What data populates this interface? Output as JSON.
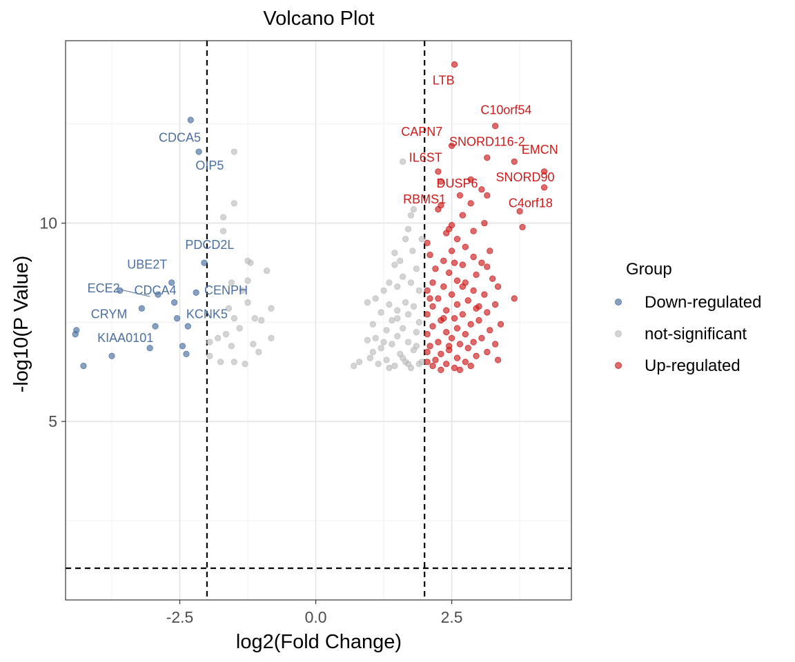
{
  "chart_data": {
    "type": "scatter",
    "title": "Volcano Plot",
    "xlabel": "log2(Fold Change)",
    "ylabel": "-log10(P Value)",
    "xlim": [
      -4.6,
      4.7
    ],
    "ylim": [
      0.5,
      14.6
    ],
    "x_ticks": [
      -2.5,
      0.0,
      2.5
    ],
    "x_tick_labels": [
      "-2.5",
      "0.0",
      "2.5"
    ],
    "y_ticks": [
      5,
      10
    ],
    "y_tick_labels": [
      "5",
      "10"
    ],
    "grid": true,
    "thresholds": {
      "fold_change": [
        -2,
        2
      ],
      "neg_log10_p": 1.3
    },
    "legend": {
      "title": "Group",
      "position": "right",
      "entries": [
        "Down-regulated",
        "not-significant",
        "Up-regulated"
      ]
    },
    "colors": {
      "Down-regulated": "#4a6fa0",
      "not-significant": "#bdbdbd",
      "Up-regulated": "#cc1b1b"
    },
    "series": [
      {
        "name": "Down-regulated",
        "points": [
          [
            -2.3,
            12.6
          ],
          [
            -2.15,
            11.8
          ],
          [
            -2.05,
            9.0
          ],
          [
            -2.65,
            8.5
          ],
          [
            -2.6,
            8.0
          ],
          [
            -2.2,
            8.25
          ],
          [
            -3.2,
            7.85
          ],
          [
            -2.55,
            7.6
          ],
          [
            -2.95,
            7.4
          ],
          [
            -2.35,
            7.4
          ],
          [
            -4.4,
            7.3
          ],
          [
            -4.42,
            7.2
          ],
          [
            -3.05,
            6.85
          ],
          [
            -2.45,
            6.9
          ],
          [
            -2.38,
            6.7
          ],
          [
            -3.75,
            6.65
          ],
          [
            -4.27,
            6.4
          ],
          [
            -3.6,
            8.3
          ],
          [
            -2.9,
            8.2
          ]
        ]
      },
      {
        "name": "not-significant",
        "points": [
          [
            -1.5,
            11.8
          ],
          [
            -1.5,
            10.5
          ],
          [
            -1.7,
            10.15
          ],
          [
            -1.7,
            9.8
          ],
          [
            -1.25,
            9.05
          ],
          [
            -1.2,
            9.0
          ],
          [
            -0.9,
            8.8
          ],
          [
            -1.55,
            8.5
          ],
          [
            -1.25,
            8.55
          ],
          [
            -1.35,
            8.3
          ],
          [
            -1.25,
            8.0
          ],
          [
            -0.82,
            7.85
          ],
          [
            -1.6,
            7.85
          ],
          [
            -1.5,
            7.6
          ],
          [
            -1.12,
            7.6
          ],
          [
            -1.0,
            7.55
          ],
          [
            -1.4,
            7.35
          ],
          [
            -1.65,
            7.2
          ],
          [
            -1.8,
            7.1
          ],
          [
            -0.82,
            7.1
          ],
          [
            -1.15,
            6.95
          ],
          [
            -1.55,
            6.9
          ],
          [
            -1.95,
            7.0
          ],
          [
            -1.05,
            6.75
          ],
          [
            -1.95,
            6.65
          ],
          [
            -1.5,
            6.5
          ],
          [
            -1.3,
            6.45
          ],
          [
            -1.75,
            6.5
          ],
          [
            1.6,
            11.55
          ],
          [
            1.8,
            10.35
          ],
          [
            1.75,
            10.2
          ],
          [
            1.7,
            9.85
          ],
          [
            1.65,
            9.6
          ],
          [
            1.45,
            9.25
          ],
          [
            1.78,
            9.3
          ],
          [
            1.55,
            9.05
          ],
          [
            1.85,
            8.85
          ],
          [
            1.6,
            8.65
          ],
          [
            1.75,
            8.5
          ],
          [
            1.35,
            8.5
          ],
          [
            1.5,
            8.4
          ],
          [
            1.9,
            8.3
          ],
          [
            1.25,
            8.3
          ],
          [
            1.1,
            8.1
          ],
          [
            1.65,
            8.0
          ],
          [
            1.35,
            7.95
          ],
          [
            0.95,
            8.0
          ],
          [
            1.8,
            7.9
          ],
          [
            1.5,
            7.8
          ],
          [
            1.2,
            7.75
          ],
          [
            1.7,
            7.7
          ],
          [
            1.4,
            7.55
          ],
          [
            1.9,
            7.5
          ],
          [
            1.05,
            7.45
          ],
          [
            1.6,
            7.35
          ],
          [
            1.3,
            7.3
          ],
          [
            1.85,
            7.25
          ],
          [
            1.5,
            7.15
          ],
          [
            1.1,
            7.1
          ],
          [
            0.95,
            7.05
          ],
          [
            1.7,
            7.0
          ],
          [
            1.4,
            6.95
          ],
          [
            1.2,
            6.85
          ],
          [
            1.8,
            6.8
          ],
          [
            1.55,
            6.7
          ],
          [
            1.0,
            6.6
          ],
          [
            1.3,
            6.55
          ],
          [
            1.65,
            6.5
          ],
          [
            1.9,
            6.45
          ],
          [
            1.45,
            6.4
          ],
          [
            0.8,
            6.5
          ],
          [
            1.15,
            6.45
          ],
          [
            1.75,
            6.35
          ],
          [
            0.7,
            6.4
          ],
          [
            1.35,
            6.35
          ],
          [
            1.95,
            6.5
          ],
          [
            1.6,
            6.6
          ],
          [
            1.05,
            6.75
          ],
          [
            1.5,
            7.6
          ],
          [
            1.25,
            7.0
          ],
          [
            1.85,
            6.9
          ],
          [
            1.7,
            6.45
          ],
          [
            1.45,
            8.95
          ],
          [
            1.95,
            9.6
          ]
        ]
      },
      {
        "name": "Up-regulated",
        "points": [
          [
            2.55,
            14.0
          ],
          [
            3.3,
            12.45
          ],
          [
            2.5,
            11.95
          ],
          [
            3.15,
            11.65
          ],
          [
            3.65,
            11.55
          ],
          [
            4.2,
            11.3
          ],
          [
            2.25,
            11.3
          ],
          [
            2.3,
            11.05
          ],
          [
            2.85,
            11.1
          ],
          [
            4.2,
            10.9
          ],
          [
            3.05,
            10.85
          ],
          [
            2.65,
            10.7
          ],
          [
            3.15,
            10.7
          ],
          [
            2.85,
            10.5
          ],
          [
            2.3,
            10.45
          ],
          [
            2.25,
            10.35
          ],
          [
            3.75,
            10.3
          ],
          [
            2.7,
            10.2
          ],
          [
            3.8,
            9.9
          ],
          [
            3.1,
            10.0
          ],
          [
            2.5,
            9.95
          ],
          [
            2.45,
            9.85
          ],
          [
            2.4,
            9.75
          ],
          [
            2.9,
            9.8
          ],
          [
            2.6,
            9.6
          ],
          [
            2.05,
            9.5
          ],
          [
            2.75,
            9.4
          ],
          [
            3.2,
            9.3
          ],
          [
            2.5,
            9.3
          ],
          [
            2.1,
            9.2
          ],
          [
            2.9,
            9.15
          ],
          [
            2.35,
            9.05
          ],
          [
            3.05,
            9.0
          ],
          [
            2.7,
            8.95
          ],
          [
            3.15,
            8.9
          ],
          [
            2.2,
            8.85
          ],
          [
            2.45,
            8.75
          ],
          [
            2.95,
            8.7
          ],
          [
            3.25,
            8.6
          ],
          [
            2.6,
            8.55
          ],
          [
            2.15,
            8.5
          ],
          [
            2.75,
            8.5
          ],
          [
            3.35,
            8.4
          ],
          [
            2.35,
            8.4
          ],
          [
            2.9,
            8.3
          ],
          [
            2.05,
            8.3
          ],
          [
            3.1,
            8.2
          ],
          [
            2.5,
            8.2
          ],
          [
            3.65,
            8.1
          ],
          [
            2.25,
            8.1
          ],
          [
            2.8,
            8.05
          ],
          [
            3.3,
            7.95
          ],
          [
            2.6,
            7.95
          ],
          [
            2.15,
            7.9
          ],
          [
            2.95,
            7.85
          ],
          [
            2.4,
            7.8
          ],
          [
            3.15,
            7.75
          ],
          [
            2.7,
            7.7
          ],
          [
            2.05,
            7.7
          ],
          [
            2.55,
            7.6
          ],
          [
            3.0,
            7.55
          ],
          [
            2.3,
            7.55
          ],
          [
            3.4,
            7.45
          ],
          [
            2.85,
            7.45
          ],
          [
            2.15,
            7.4
          ],
          [
            2.6,
            7.35
          ],
          [
            3.2,
            7.3
          ],
          [
            2.4,
            7.25
          ],
          [
            2.75,
            7.2
          ],
          [
            2.05,
            7.2
          ],
          [
            3.05,
            7.1
          ],
          [
            2.5,
            7.1
          ],
          [
            2.9,
            7.0
          ],
          [
            2.25,
            7.0
          ],
          [
            3.3,
            6.95
          ],
          [
            2.65,
            6.95
          ],
          [
            2.1,
            6.9
          ],
          [
            2.8,
            6.85
          ],
          [
            2.45,
            6.8
          ],
          [
            3.15,
            6.75
          ],
          [
            2.3,
            6.7
          ],
          [
            2.05,
            6.75
          ],
          [
            2.95,
            6.65
          ],
          [
            2.6,
            6.6
          ],
          [
            2.2,
            6.55
          ],
          [
            3.35,
            6.55
          ],
          [
            2.75,
            6.5
          ],
          [
            2.4,
            6.45
          ],
          [
            2.15,
            6.4
          ],
          [
            2.55,
            6.35
          ],
          [
            2.3,
            6.3
          ],
          [
            2.65,
            6.3
          ],
          [
            2.85,
            6.4
          ],
          [
            2.05,
            6.5
          ],
          [
            2.45,
            6.9
          ],
          [
            3.0,
            7.9
          ],
          [
            2.7,
            8.4
          ],
          [
            2.35,
            7.6
          ],
          [
            2.1,
            8.1
          ],
          [
            2.55,
            9.0
          ]
        ]
      }
    ],
    "annotations": [
      {
        "label": "LTB",
        "group": "Up-regulated",
        "lx": 2.35,
        "ly": 13.5
      },
      {
        "label": "C10orf54",
        "group": "Up-regulated",
        "lx": 3.5,
        "ly": 12.75
      },
      {
        "label": "CAPN7",
        "group": "Up-regulated",
        "lx": 1.95,
        "ly": 12.2
      },
      {
        "label": "SNORD116-2",
        "group": "Up-regulated",
        "lx": 3.15,
        "ly": 11.95
      },
      {
        "label": "EMCN",
        "group": "Up-regulated",
        "lx": 4.12,
        "ly": 11.75
      },
      {
        "label": "IL6ST",
        "group": "Up-regulated",
        "lx": 2.02,
        "ly": 11.55
      },
      {
        "label": "SNORD90",
        "group": "Up-regulated",
        "lx": 3.85,
        "ly": 11.05
      },
      {
        "label": "DUSP6",
        "group": "Up-regulated",
        "lx": 2.6,
        "ly": 10.9
      },
      {
        "label": "RBMS1",
        "group": "Up-regulated",
        "lx": 2.0,
        "ly": 10.5
      },
      {
        "label": "C4orf18",
        "group": "Up-regulated",
        "lx": 3.95,
        "ly": 10.4
      },
      {
        "label": "CDCA5",
        "group": "Down-regulated",
        "lx": -2.5,
        "ly": 12.05
      },
      {
        "label": "OIP5",
        "group": "Down-regulated",
        "lx": -1.95,
        "ly": 11.35
      },
      {
        "label": "PDCD2L",
        "group": "Down-regulated",
        "lx": -1.95,
        "ly": 9.35
      },
      {
        "label": "UBE2T",
        "group": "Down-regulated",
        "lx": -3.1,
        "ly": 8.85
      },
      {
        "label": "ECE2",
        "group": "Down-regulated",
        "lx": -3.9,
        "ly": 8.25
      },
      {
        "label": "CDCA4",
        "group": "Down-regulated",
        "lx": -2.95,
        "ly": 8.2
      },
      {
        "label": "CENPH",
        "group": "Down-regulated",
        "lx": -1.65,
        "ly": 8.2
      },
      {
        "label": "CRYM",
        "group": "Down-regulated",
        "lx": -3.8,
        "ly": 7.6
      },
      {
        "label": "KCNK5",
        "group": "Down-regulated",
        "lx": -2.0,
        "ly": 7.6
      },
      {
        "label": "KIAA0101",
        "group": "Down-regulated",
        "lx": -3.5,
        "ly": 7.0
      }
    ]
  }
}
